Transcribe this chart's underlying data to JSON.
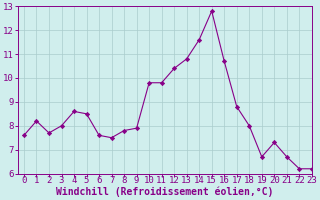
{
  "x": [
    0,
    1,
    2,
    3,
    4,
    5,
    6,
    7,
    8,
    9,
    10,
    11,
    12,
    13,
    14,
    15,
    16,
    17,
    18,
    19,
    20,
    21,
    22,
    23
  ],
  "y": [
    7.6,
    8.2,
    7.7,
    8.0,
    8.6,
    8.5,
    7.6,
    7.5,
    7.8,
    7.9,
    9.8,
    9.8,
    10.4,
    10.8,
    11.6,
    12.8,
    10.7,
    8.8,
    8.0,
    6.7,
    7.3,
    6.7,
    6.2,
    6.2
  ],
  "line_color": "#880088",
  "marker": "D",
  "marker_size": 2.2,
  "bg_color": "#d0eeed",
  "grid_color": "#aacccc",
  "tick_label_color": "#880088",
  "xlabel": "Windchill (Refroidissement éolien,°C)",
  "xlabel_color": "#880088",
  "ylim": [
    6,
    13
  ],
  "xlim": [
    -0.5,
    23
  ],
  "yticks": [
    6,
    7,
    8,
    9,
    10,
    11,
    12,
    13
  ],
  "xticks": [
    0,
    1,
    2,
    3,
    4,
    5,
    6,
    7,
    8,
    9,
    10,
    11,
    12,
    13,
    14,
    15,
    16,
    17,
    18,
    19,
    20,
    21,
    22,
    23
  ],
  "font_size": 6.5,
  "xlabel_fontsize": 7.0
}
